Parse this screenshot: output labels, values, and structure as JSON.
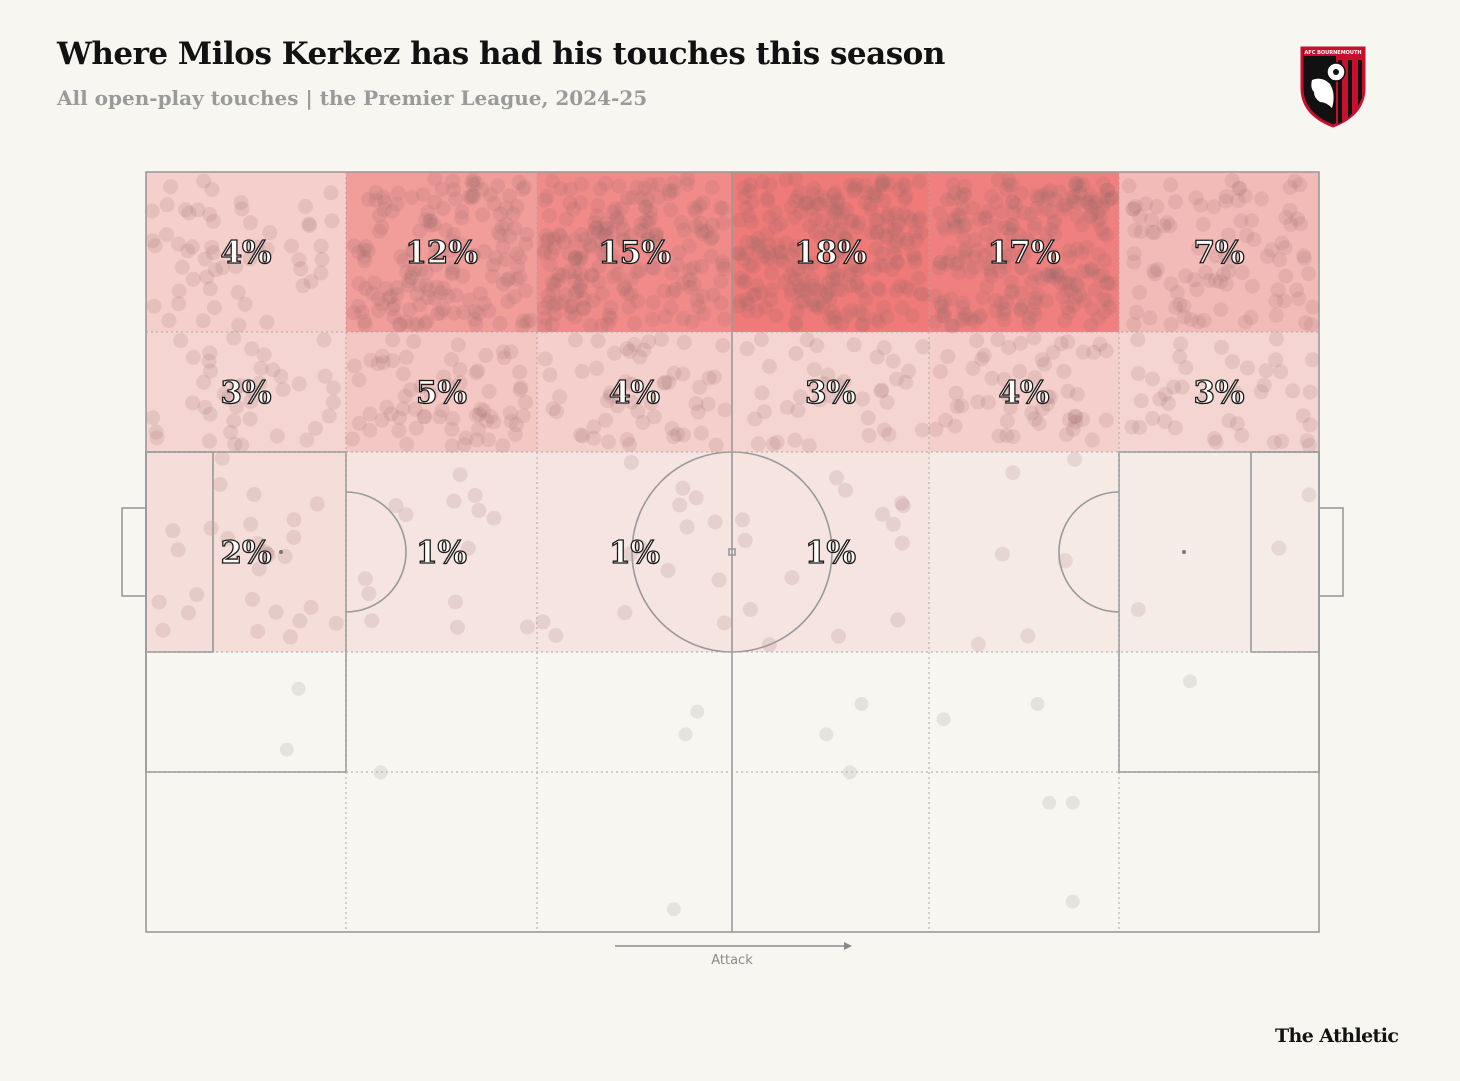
{
  "header": {
    "title": "Where Milos Kerkez has had his touches this season",
    "subtitle": "All open-play touches | the Premier League, 2024-25"
  },
  "logo": {
    "icon": "afc-bournemouth-crest-icon",
    "text": "AFC BOURNEMOUTH",
    "colors": [
      "#c8102e",
      "#111111",
      "#ffffff"
    ]
  },
  "footer": {
    "attack_label": "Attack",
    "brand": "The Athletic"
  },
  "colors": {
    "background": "#f7f6f1",
    "heat": "#ec4a4a",
    "lines": "#9a9a9a",
    "text": "#1a1a1a"
  },
  "chart_data": {
    "type": "heatmap",
    "title": "Where Milos Kerkez has had his touches this season",
    "subtitle": "All open-play touches | the Premier League, 2024-25",
    "direction": "left-to-right",
    "columns": 6,
    "rows": 5,
    "zones": [
      {
        "row": 0,
        "col": 0,
        "pct": 4,
        "label": "4%"
      },
      {
        "row": 0,
        "col": 1,
        "pct": 12,
        "label": "12%"
      },
      {
        "row": 0,
        "col": 2,
        "pct": 15,
        "label": "15%"
      },
      {
        "row": 0,
        "col": 3,
        "pct": 18,
        "label": "18%"
      },
      {
        "row": 0,
        "col": 4,
        "pct": 17,
        "label": "17%"
      },
      {
        "row": 0,
        "col": 5,
        "pct": 7,
        "label": "7%"
      },
      {
        "row": 1,
        "col": 0,
        "pct": 3,
        "label": "3%"
      },
      {
        "row": 1,
        "col": 1,
        "pct": 5,
        "label": "5%"
      },
      {
        "row": 1,
        "col": 2,
        "pct": 4,
        "label": "4%"
      },
      {
        "row": 1,
        "col": 3,
        "pct": 3,
        "label": "3%"
      },
      {
        "row": 1,
        "col": 4,
        "pct": 4,
        "label": "4%"
      },
      {
        "row": 1,
        "col": 5,
        "pct": 3,
        "label": "3%"
      },
      {
        "row": 2,
        "col": 0,
        "pct": 2,
        "label": "2%"
      },
      {
        "row": 2,
        "col": 1,
        "pct": 1,
        "label": "1%"
      },
      {
        "row": 2,
        "col": 2,
        "pct": 1,
        "label": "1%"
      },
      {
        "row": 2,
        "col": 3,
        "pct": 1,
        "label": "1%"
      },
      {
        "row": 2,
        "col": 4,
        "pct": 0.4,
        "label": ""
      },
      {
        "row": 2,
        "col": 5,
        "pct": 0.2,
        "label": ""
      },
      {
        "row": 3,
        "col": 0,
        "pct": 0,
        "label": ""
      },
      {
        "row": 3,
        "col": 1,
        "pct": 0,
        "label": ""
      },
      {
        "row": 3,
        "col": 2,
        "pct": 0,
        "label": ""
      },
      {
        "row": 3,
        "col": 3,
        "pct": 0,
        "label": ""
      },
      {
        "row": 3,
        "col": 4,
        "pct": 0,
        "label": ""
      },
      {
        "row": 3,
        "col": 5,
        "pct": 0,
        "label": ""
      },
      {
        "row": 4,
        "col": 0,
        "pct": 0,
        "label": ""
      },
      {
        "row": 4,
        "col": 1,
        "pct": 0,
        "label": ""
      },
      {
        "row": 4,
        "col": 2,
        "pct": 0,
        "label": ""
      },
      {
        "row": 4,
        "col": 3,
        "pct": 0,
        "label": ""
      },
      {
        "row": 4,
        "col": 4,
        "pct": 0,
        "label": ""
      },
      {
        "row": 4,
        "col": 5,
        "pct": 0,
        "label": ""
      }
    ],
    "sparse_touches": [
      {
        "x": 0.13,
        "y": 0.68
      },
      {
        "x": 0.12,
        "y": 0.76
      },
      {
        "x": 0.2,
        "y": 0.79
      },
      {
        "x": 0.47,
        "y": 0.71
      },
      {
        "x": 0.46,
        "y": 0.74
      },
      {
        "x": 0.61,
        "y": 0.7
      },
      {
        "x": 0.58,
        "y": 0.74
      },
      {
        "x": 0.6,
        "y": 0.79
      },
      {
        "x": 0.68,
        "y": 0.72
      },
      {
        "x": 0.76,
        "y": 0.7
      },
      {
        "x": 0.89,
        "y": 0.67
      },
      {
        "x": 0.79,
        "y": 0.83
      },
      {
        "x": 0.77,
        "y": 0.83
      },
      {
        "x": 0.45,
        "y": 0.97
      },
      {
        "x": 0.79,
        "y": 0.96
      }
    ]
  }
}
